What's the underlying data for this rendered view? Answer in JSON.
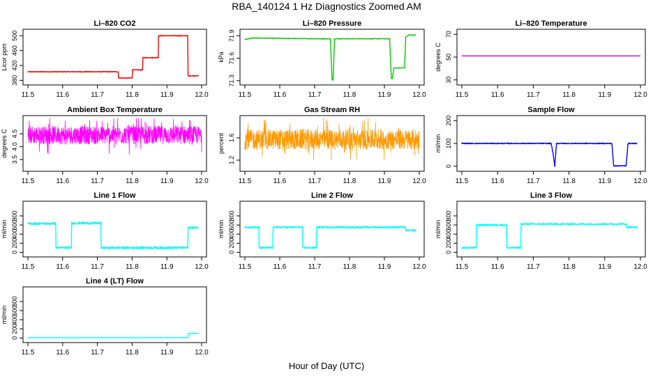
{
  "figure": {
    "title": "RBA_140124  1 Hz Diagnostics Zoomed AM",
    "xlabel": "Hour of Day (UTC)"
  },
  "chart_data": [
    {
      "type": "line",
      "id": "co2",
      "title": "Li–820 CO2",
      "ylabel": "Licor ppm",
      "color": "#ff0000",
      "xlim": [
        11.5,
        12.0
      ],
      "ylim": [
        375,
        510
      ],
      "xticks": [
        11.5,
        11.6,
        11.7,
        11.8,
        11.9,
        12.0
      ],
      "yticks": [
        380,
        420,
        460,
        500
      ],
      "noise": 1.0,
      "series": [
        {
          "name": "CO2",
          "x": [
            11.5,
            11.76,
            11.761,
            11.8,
            11.801,
            11.83,
            11.831,
            11.875,
            11.876,
            11.96,
            11.961,
            11.99
          ],
          "y": [
            403,
            403,
            386,
            386,
            408,
            408,
            441,
            441,
            500,
            500,
            392,
            392
          ]
        }
      ]
    },
    {
      "type": "line",
      "id": "pressure",
      "title": "Li–820 Pressure",
      "ylabel": "kPa",
      "color": "#00cc00",
      "xlim": [
        11.5,
        12.0
      ],
      "ylim": [
        71.28,
        71.95
      ],
      "xticks": [
        11.5,
        11.6,
        11.7,
        11.8,
        11.9,
        12.0
      ],
      "yticks": [
        71.3,
        71.6,
        71.9
      ],
      "noise": 0.004,
      "series": [
        {
          "name": "Pressure",
          "x": [
            11.5,
            11.52,
            11.7,
            11.745,
            11.75,
            11.753,
            11.757,
            11.915,
            11.92,
            11.923,
            11.927,
            11.958,
            11.961,
            11.97,
            11.99
          ],
          "y": [
            71.85,
            71.87,
            71.86,
            71.86,
            71.31,
            71.31,
            71.86,
            71.86,
            71.33,
            71.33,
            71.47,
            71.47,
            71.88,
            71.91,
            71.91
          ]
        }
      ]
    },
    {
      "type": "line",
      "id": "temperature",
      "title": "Li–820 Temperature",
      "ylabel": "degrees C",
      "color": "#cc00cc",
      "xlim": [
        11.5,
        12.0
      ],
      "ylim": [
        28,
        72
      ],
      "xticks": [
        11.5,
        11.6,
        11.7,
        11.8,
        11.9,
        12.0
      ],
      "yticks": [
        30,
        50,
        70
      ],
      "noise": 0,
      "series": [
        {
          "name": "Temperature",
          "x": [
            11.5,
            12.0
          ],
          "y": [
            51,
            51
          ]
        }
      ]
    },
    {
      "type": "line",
      "id": "ambient",
      "title": "Ambient Box Temperature",
      "ylabel": "degrees C",
      "color": "#ff00ff",
      "xlim": [
        11.5,
        12.0
      ],
      "ylim": [
        3.15,
        5.1
      ],
      "xticks": [
        11.5,
        11.6,
        11.7,
        11.8,
        11.9,
        12.0
      ],
      "yticks": [
        3.5,
        4.0,
        4.5
      ],
      "noise": 0.35,
      "dense": true,
      "series": [
        {
          "name": "Ambient",
          "x": [
            11.5,
            12.0
          ],
          "y": [
            4.45,
            4.45
          ]
        }
      ]
    },
    {
      "type": "line",
      "id": "rh",
      "title": "Gas Stream RH",
      "ylabel": "percent",
      "color": "#ff9900",
      "xlim": [
        11.5,
        12.0
      ],
      "ylim": [
        1.05,
        1.95
      ],
      "xticks": [
        11.5,
        11.6,
        11.7,
        11.8,
        11.9,
        12.0
      ],
      "yticks": [
        1.2,
        1.6
      ],
      "noise": 0.18,
      "dense": true,
      "series": [
        {
          "name": "RH",
          "x": [
            11.5,
            12.0
          ],
          "y": [
            1.57,
            1.57
          ]
        }
      ]
    },
    {
      "type": "line",
      "id": "sample",
      "title": "Sample Flow",
      "ylabel": "ml/min",
      "color": "#0000ff",
      "xlim": [
        11.5,
        12.0
      ],
      "ylim": [
        -10,
        210
      ],
      "xticks": [
        11.5,
        11.6,
        11.7,
        11.8,
        11.9,
        12.0
      ],
      "yticks": [
        0,
        100,
        200
      ],
      "noise": 2,
      "series": [
        {
          "name": "Sample",
          "x": [
            11.5,
            11.75,
            11.755,
            11.76,
            11.765,
            11.92,
            11.925,
            11.96,
            11.965,
            11.99
          ],
          "y": [
            100,
            100,
            60,
            0,
            100,
            100,
            2,
            2,
            100,
            100
          ]
        }
      ]
    },
    {
      "type": "line",
      "id": "line1",
      "title": "Line 1 Flow",
      "ylabel": "ml/min",
      "color": "#00ffff",
      "xlim": [
        11.5,
        12.0
      ],
      "ylim": [
        -40,
        1060
      ],
      "xticks": [
        11.5,
        11.6,
        11.7,
        11.8,
        11.9,
        12.0
      ],
      "yticks": [
        0,
        200,
        400,
        600,
        800
      ],
      "noise": 25,
      "series": [
        {
          "name": "Line 1",
          "x": [
            11.5,
            11.58,
            11.581,
            11.625,
            11.626,
            11.71,
            11.711,
            11.96,
            11.961,
            11.99
          ],
          "y": [
            630,
            630,
            100,
            100,
            640,
            640,
            100,
            100,
            540,
            540
          ]
        }
      ]
    },
    {
      "type": "line",
      "id": "line2",
      "title": "Line 2 Flow",
      "ylabel": "ml/min",
      "color": "#00ffff",
      "xlim": [
        11.5,
        12.0
      ],
      "ylim": [
        -40,
        1060
      ],
      "xticks": [
        11.5,
        11.6,
        11.7,
        11.8,
        11.9,
        12.0
      ],
      "yticks": [
        0,
        200,
        400,
        600,
        800
      ],
      "noise": 18,
      "series": [
        {
          "name": "Line 2",
          "x": [
            11.5,
            11.54,
            11.541,
            11.58,
            11.581,
            11.665,
            11.666,
            11.705,
            11.706,
            11.96,
            11.961,
            11.99
          ],
          "y": [
            550,
            550,
            100,
            100,
            550,
            550,
            100,
            100,
            550,
            550,
            480,
            480
          ]
        }
      ]
    },
    {
      "type": "line",
      "id": "line3",
      "title": "Line 3 Flow",
      "ylabel": "ml/min",
      "color": "#00ffff",
      "xlim": [
        11.5,
        12.0
      ],
      "ylim": [
        -40,
        1060
      ],
      "xticks": [
        11.5,
        11.6,
        11.7,
        11.8,
        11.9,
        12.0
      ],
      "yticks": [
        0,
        200,
        400,
        600,
        800
      ],
      "noise": 18,
      "series": [
        {
          "name": "Line 3",
          "x": [
            11.5,
            11.54,
            11.541,
            11.625,
            11.626,
            11.665,
            11.666,
            11.96,
            11.961,
            11.99
          ],
          "y": [
            100,
            100,
            600,
            600,
            100,
            100,
            620,
            620,
            550,
            550
          ]
        }
      ]
    },
    {
      "type": "line",
      "id": "line4",
      "title": "Line 4 (LT) Flow",
      "ylabel": "ml/min",
      "color": "#00ffff",
      "xlim": [
        11.5,
        12.0
      ],
      "ylim": [
        -40,
        1060
      ],
      "xticks": [
        11.5,
        11.6,
        11.7,
        11.8,
        11.9,
        12.0
      ],
      "yticks": [
        0,
        200,
        400,
        600,
        800
      ],
      "noise": 2,
      "series": [
        {
          "name": "Line 4",
          "x": [
            11.5,
            11.96,
            11.962,
            11.99
          ],
          "y": [
            5,
            5,
            100,
            100
          ]
        }
      ]
    }
  ]
}
